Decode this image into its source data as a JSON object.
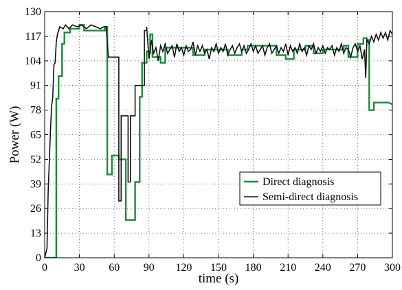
{
  "chart_data": {
    "type": "line",
    "xlabel": "time (s)",
    "ylabel": "Power (W)",
    "xlim": [
      0,
      300
    ],
    "ylim": [
      0,
      130
    ],
    "xticks": [
      0,
      30,
      60,
      90,
      120,
      150,
      180,
      210,
      240,
      270,
      300
    ],
    "yticks": [
      0,
      13,
      26,
      39,
      52,
      65,
      78,
      91,
      104,
      117,
      130
    ],
    "grid": true,
    "legend_position": "center-right",
    "series": [
      {
        "name": "Direct diagnosis",
        "color": "#1a8c3c",
        "points": [
          [
            0,
            0
          ],
          [
            10,
            0
          ],
          [
            10,
            84
          ],
          [
            12,
            84
          ],
          [
            12,
            96
          ],
          [
            15,
            96
          ],
          [
            15,
            113
          ],
          [
            17,
            113
          ],
          [
            17,
            119
          ],
          [
            22,
            119
          ],
          [
            22,
            121
          ],
          [
            30,
            121
          ],
          [
            30,
            123
          ],
          [
            34,
            123
          ],
          [
            34,
            120
          ],
          [
            52,
            120
          ],
          [
            52,
            122
          ],
          [
            54,
            122
          ],
          [
            54,
            44
          ],
          [
            58,
            44
          ],
          [
            58,
            54
          ],
          [
            64,
            54
          ],
          [
            64,
            52
          ],
          [
            70,
            52
          ],
          [
            70,
            20
          ],
          [
            78,
            20
          ],
          [
            78,
            40
          ],
          [
            82,
            40
          ],
          [
            82,
            85
          ],
          [
            84,
            85
          ],
          [
            84,
            103
          ],
          [
            88,
            103
          ],
          [
            88,
            109
          ],
          [
            90,
            109
          ],
          [
            90,
            108
          ],
          [
            91,
            108
          ],
          [
            91,
            118
          ],
          [
            93,
            118
          ],
          [
            93,
            106
          ],
          [
            100,
            106
          ],
          [
            100,
            103
          ],
          [
            104,
            103
          ],
          [
            104,
            111
          ],
          [
            128,
            111
          ],
          [
            128,
            107
          ],
          [
            138,
            107
          ],
          [
            138,
            110
          ],
          [
            158,
            110
          ],
          [
            158,
            107
          ],
          [
            170,
            107
          ],
          [
            170,
            110
          ],
          [
            175,
            110
          ],
          [
            175,
            112
          ],
          [
            200,
            112
          ],
          [
            200,
            107
          ],
          [
            208,
            107
          ],
          [
            208,
            105
          ],
          [
            215,
            105
          ],
          [
            215,
            110
          ],
          [
            225,
            110
          ],
          [
            225,
            112
          ],
          [
            232,
            112
          ],
          [
            232,
            108
          ],
          [
            240,
            108
          ],
          [
            240,
            110
          ],
          [
            258,
            110
          ],
          [
            258,
            112
          ],
          [
            262,
            112
          ],
          [
            262,
            106
          ],
          [
            270,
            106
          ],
          [
            270,
            113
          ],
          [
            275,
            113
          ],
          [
            275,
            116
          ],
          [
            278,
            116
          ],
          [
            278,
            115
          ],
          [
            280,
            115
          ],
          [
            280,
            78
          ],
          [
            284,
            78
          ],
          [
            284,
            82
          ],
          [
            297,
            82
          ],
          [
            300,
            81
          ]
        ]
      },
      {
        "name": "Semi-direct diagnosis",
        "color": "#111111",
        "points": [
          [
            0,
            0
          ],
          [
            2,
            5
          ],
          [
            3,
            35
          ],
          [
            4,
            50
          ],
          [
            5,
            67
          ],
          [
            6,
            80
          ],
          [
            7,
            85
          ],
          [
            8,
            102
          ],
          [
            9,
            103
          ],
          [
            10,
            114
          ],
          [
            11,
            118
          ],
          [
            13,
            122
          ],
          [
            16,
            121
          ],
          [
            18,
            123
          ],
          [
            21,
            121
          ],
          [
            24,
            123
          ],
          [
            28,
            122
          ],
          [
            32,
            123
          ],
          [
            36,
            121
          ],
          [
            40,
            123
          ],
          [
            44,
            122
          ],
          [
            48,
            121
          ],
          [
            51,
            122
          ],
          [
            53,
            122
          ],
          [
            55,
            106
          ],
          [
            64,
            106
          ],
          [
            64,
            30
          ],
          [
            66,
            30
          ],
          [
            66,
            75
          ],
          [
            72,
            75
          ],
          [
            72,
            40
          ],
          [
            74,
            40
          ],
          [
            74,
            75
          ],
          [
            78,
            75
          ],
          [
            78,
            91
          ],
          [
            86,
            91
          ],
          [
            86,
            120
          ],
          [
            88,
            120
          ],
          [
            88,
            122
          ],
          [
            90,
            105
          ],
          [
            92,
            115
          ],
          [
            94,
            108
          ],
          [
            96,
            111
          ],
          [
            98,
            104
          ],
          [
            100,
            112
          ],
          [
            102,
            109
          ],
          [
            104,
            113
          ],
          [
            106,
            108
          ],
          [
            108,
            110
          ],
          [
            110,
            112
          ],
          [
            112,
            106
          ],
          [
            114,
            113
          ],
          [
            116,
            109
          ],
          [
            118,
            111
          ],
          [
            120,
            107
          ],
          [
            122,
            112
          ],
          [
            124,
            109
          ],
          [
            126,
            110
          ],
          [
            128,
            114
          ],
          [
            130,
            107
          ],
          [
            132,
            112
          ],
          [
            134,
            109
          ],
          [
            136,
            112
          ],
          [
            138,
            108
          ],
          [
            140,
            110
          ],
          [
            142,
            105
          ],
          [
            144,
            111
          ],
          [
            146,
            109
          ],
          [
            148,
            113
          ],
          [
            150,
            108
          ],
          [
            152,
            111
          ],
          [
            154,
            109
          ],
          [
            156,
            113
          ],
          [
            158,
            107
          ],
          [
            160,
            110
          ],
          [
            162,
            112
          ],
          [
            164,
            108
          ],
          [
            166,
            111
          ],
          [
            168,
            113
          ],
          [
            170,
            109
          ],
          [
            172,
            112
          ],
          [
            174,
            108
          ],
          [
            176,
            110
          ],
          [
            178,
            113
          ],
          [
            180,
            109
          ],
          [
            182,
            112
          ],
          [
            184,
            108
          ],
          [
            186,
            110
          ],
          [
            188,
            112
          ],
          [
            190,
            107
          ],
          [
            192,
            111
          ],
          [
            194,
            113
          ],
          [
            196,
            108
          ],
          [
            198,
            110
          ],
          [
            200,
            112
          ],
          [
            202,
            108
          ],
          [
            204,
            111
          ],
          [
            206,
            109
          ],
          [
            208,
            113
          ],
          [
            210,
            107
          ],
          [
            212,
            112
          ],
          [
            214,
            109
          ],
          [
            216,
            111
          ],
          [
            218,
            108
          ],
          [
            220,
            113
          ],
          [
            222,
            109
          ],
          [
            224,
            111
          ],
          [
            226,
            107
          ],
          [
            228,
            112
          ],
          [
            230,
            110
          ],
          [
            232,
            113
          ],
          [
            234,
            108
          ],
          [
            236,
            111
          ],
          [
            238,
            109
          ],
          [
            240,
            112
          ],
          [
            242,
            108
          ],
          [
            244,
            111
          ],
          [
            246,
            110
          ],
          [
            248,
            112
          ],
          [
            250,
            107
          ],
          [
            252,
            111
          ],
          [
            254,
            109
          ],
          [
            256,
            113
          ],
          [
            258,
            108
          ],
          [
            260,
            111
          ],
          [
            262,
            110
          ],
          [
            264,
            106
          ],
          [
            266,
            111
          ],
          [
            268,
            113
          ],
          [
            270,
            109
          ],
          [
            272,
            112
          ],
          [
            274,
            105
          ],
          [
            276,
            110
          ],
          [
            277,
            95
          ],
          [
            278,
            115
          ],
          [
            280,
            113
          ],
          [
            282,
            117
          ],
          [
            284,
            114
          ],
          [
            286,
            118
          ],
          [
            288,
            115
          ],
          [
            290,
            119
          ],
          [
            292,
            116
          ],
          [
            294,
            119
          ],
          [
            296,
            115
          ],
          [
            298,
            120
          ],
          [
            300,
            118
          ]
        ]
      }
    ]
  }
}
